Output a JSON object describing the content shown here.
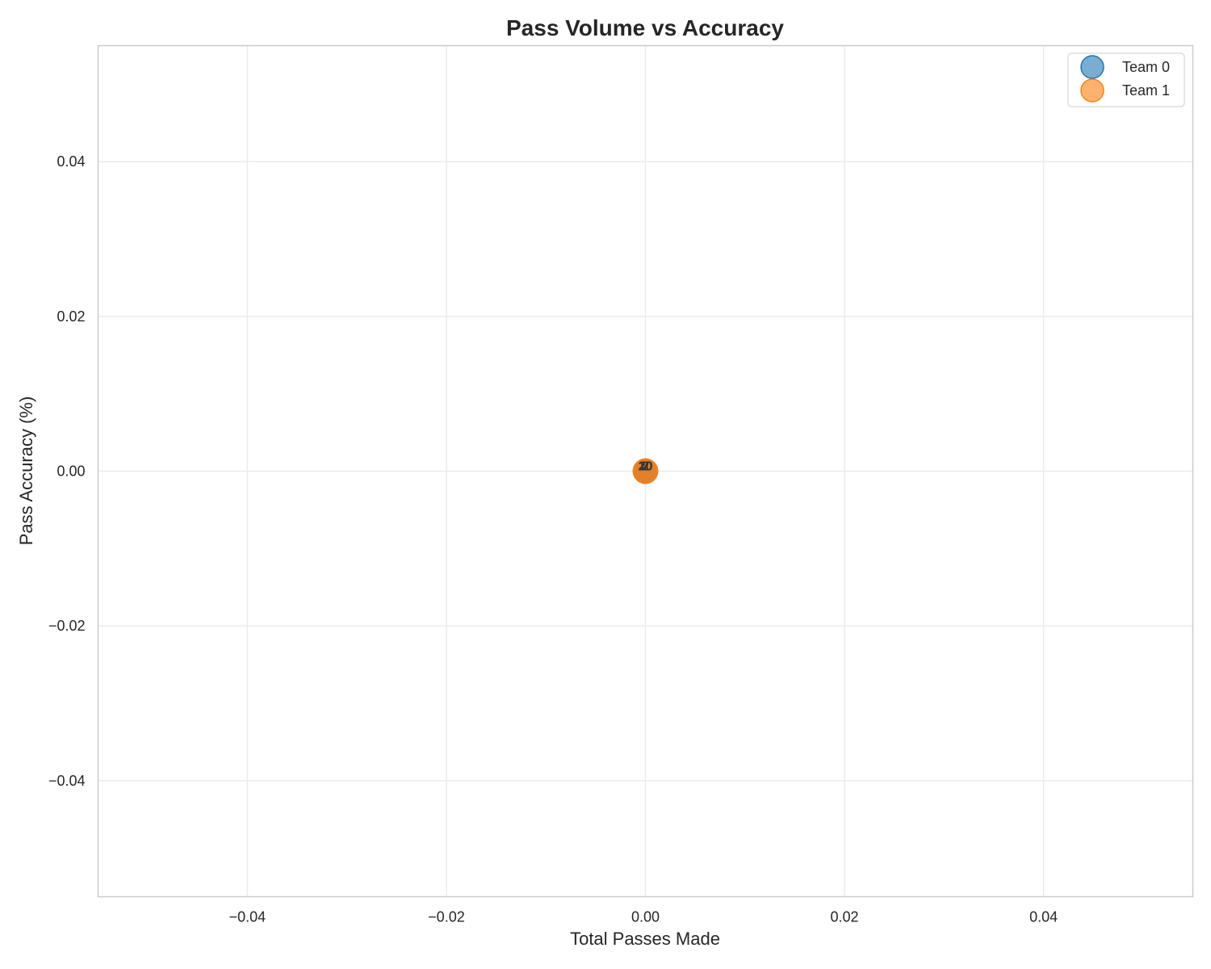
{
  "chart_data": {
    "type": "scatter",
    "title": "Pass Volume vs Accuracy",
    "xlabel": "Total Passes Made",
    "ylabel": "Pass Accuracy (%)",
    "xlim": [
      -0.055,
      0.055
    ],
    "ylim": [
      -0.055,
      0.055
    ],
    "xticks": [
      -0.04,
      -0.02,
      0.0,
      0.02,
      0.04
    ],
    "yticks": [
      -0.04,
      -0.02,
      0.0,
      0.02,
      0.04
    ],
    "xtick_labels": [
      "−0.04",
      "−0.02",
      "0.00",
      "0.02",
      "0.04"
    ],
    "ytick_labels": [
      "−0.04",
      "−0.02",
      "0.00",
      "0.02",
      "0.04"
    ],
    "grid": true,
    "legend_position": "top-right",
    "series": [
      {
        "name": "Team 0",
        "color": "#1f77b4",
        "points": [
          {
            "x": 0,
            "y": 0,
            "label": "2"
          },
          {
            "x": 0,
            "y": 0,
            "label": "10"
          }
        ]
      },
      {
        "name": "Team 1",
        "color": "#ff7f0e",
        "points": [
          {
            "x": 0,
            "y": 0,
            "label": "7"
          },
          {
            "x": 0,
            "y": 0,
            "label": "20"
          }
        ]
      }
    ]
  }
}
